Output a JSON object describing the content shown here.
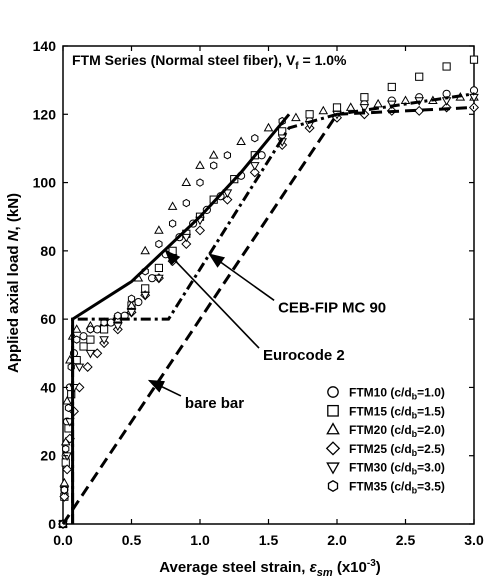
{
  "chart_data": {
    "type": "scatter",
    "title_main": "FTM Series (Normal steel fiber), V",
    "title_sub": "f",
    "title_end": " = 1.0%",
    "xlabel_main": "Average steel strain, ",
    "xlabel_sym": "ε",
    "xlabel_sub": "sm",
    "xlabel_unit_pre": " (x10",
    "xlabel_unit_sup": "-3",
    "xlabel_unit_post": ")",
    "ylabel_pre": "Applied axial load ",
    "ylabel_sym": "N",
    "ylabel_post": ", (kN)",
    "xlim": [
      0,
      3.0
    ],
    "ylim": [
      0,
      140
    ],
    "xticks": [
      "0.0",
      "0.5",
      "1.0",
      "1.5",
      "2.0",
      "2.5",
      "3.0"
    ],
    "xtick_values": [
      0,
      0.5,
      1.0,
      1.5,
      2.0,
      2.5,
      3.0
    ],
    "yticks": [
      "0",
      "20",
      "40",
      "60",
      "80",
      "100",
      "120",
      "140"
    ],
    "ytick_values": [
      0,
      20,
      40,
      60,
      80,
      100,
      120,
      140
    ],
    "grid": false,
    "legend_position": "bottom-right",
    "annotations": [
      {
        "text": "CEB-FIP MC 90",
        "x": 1.57,
        "y": 62,
        "arrow_to": [
          1.07,
          79
        ]
      },
      {
        "text": "Eurocode 2",
        "x": 1.46,
        "y": 48,
        "arrow_to": [
          0.75,
          80
        ]
      },
      {
        "text": "bare bar",
        "x": 0.89,
        "y": 34,
        "arrow_to": [
          0.63,
          42
        ]
      }
    ],
    "models": [
      {
        "name": "CEB-FIP MC 90",
        "style": "solid",
        "x": [
          0.07,
          0.07,
          0.5,
          1.0,
          1.3,
          1.65
        ],
        "y": [
          0,
          60,
          71,
          90,
          103,
          120
        ]
      },
      {
        "name": "Eurocode 2",
        "style": "dash-dot",
        "x": [
          0.07,
          0.07,
          0.77,
          1.65,
          2.0,
          3.0
        ],
        "y": [
          0,
          60,
          60,
          116,
          120,
          126
        ]
      },
      {
        "name": "bare bar",
        "style": "dashed",
        "x": [
          0.0,
          2.0,
          3.0
        ],
        "y": [
          0,
          120,
          122
        ]
      }
    ],
    "series": [
      {
        "name": "FTM10",
        "legend_pre": "FTM10 (c/d",
        "legend_sub": "b",
        "legend_post": "=1.0)",
        "marker": "circle",
        "x": [
          0.0,
          0.01,
          0.02,
          0.03,
          0.05,
          0.08,
          0.15,
          0.25,
          0.35,
          0.45,
          0.55,
          0.65,
          0.75,
          0.85,
          0.95,
          1.05,
          1.15,
          1.3,
          1.45,
          1.6,
          1.8,
          2.0,
          2.2,
          2.4,
          2.6,
          2.8,
          3.0
        ],
        "y": [
          0,
          10,
          20,
          30,
          40,
          50,
          55,
          57,
          59,
          61,
          65,
          72,
          79,
          84,
          88,
          92,
          96,
          102,
          108,
          114,
          118,
          121,
          123,
          124,
          125,
          126,
          127
        ]
      },
      {
        "name": "FTM15",
        "legend_pre": "FTM15 (c/d",
        "legend_sub": "b",
        "legend_post": "=1.5)",
        "marker": "square",
        "x": [
          0.0,
          0.01,
          0.02,
          0.04,
          0.06,
          0.1,
          0.15,
          0.2,
          0.3,
          0.4,
          0.5,
          0.6,
          0.7,
          0.8,
          0.9,
          1.0,
          1.1,
          1.25,
          1.4,
          1.6,
          1.8,
          2.0,
          2.2,
          2.4,
          2.6,
          2.8,
          3.0
        ],
        "y": [
          0,
          8,
          18,
          28,
          38,
          48,
          52,
          54,
          57,
          60,
          64,
          69,
          75,
          80,
          85,
          90,
          95,
          101,
          108,
          115,
          120,
          122,
          125,
          128,
          131,
          134,
          136
        ]
      },
      {
        "name": "FTM20",
        "legend_pre": "FTM20 (c/d",
        "legend_sub": "b",
        "legend_post": "=2.0)",
        "marker": "triangle-up",
        "x": [
          0.0,
          0.01,
          0.02,
          0.03,
          0.05,
          0.07,
          0.1,
          0.2,
          0.3,
          0.4,
          0.5,
          0.55,
          0.6,
          0.7,
          0.8,
          0.9,
          1.0,
          1.1,
          1.3,
          1.5,
          1.7,
          1.9,
          2.1,
          2.3,
          2.5,
          2.7,
          2.9,
          3.0
        ],
        "y": [
          0,
          12,
          24,
          36,
          48,
          55,
          57,
          58,
          59,
          60,
          64,
          72,
          80,
          86,
          93,
          100,
          105,
          108,
          112,
          116,
          119,
          121,
          122,
          123,
          124,
          124,
          125,
          125
        ]
      },
      {
        "name": "FTM25",
        "legend_pre": "FTM25 (c/d",
        "legend_sub": "b",
        "legend_post": "=2.5)",
        "marker": "diamond",
        "x": [
          0.0,
          0.01,
          0.03,
          0.05,
          0.08,
          0.12,
          0.18,
          0.25,
          0.3,
          0.4,
          0.5,
          0.6,
          0.7,
          0.8,
          0.9,
          1.0,
          1.2,
          1.4,
          1.6,
          1.8,
          2.0,
          2.2,
          2.4,
          2.6,
          2.8,
          3.0
        ],
        "y": [
          0,
          8,
          16,
          25,
          33,
          40,
          46,
          50,
          53,
          57,
          62,
          67,
          72,
          77,
          82,
          86,
          95,
          103,
          111,
          116,
          119,
          120,
          121,
          121,
          122,
          122
        ]
      },
      {
        "name": "FTM30",
        "legend_pre": "FTM30 (c/d",
        "legend_sub": "b",
        "legend_post": "=3.0)",
        "marker": "triangle-down",
        "x": [
          0.0,
          0.01,
          0.03,
          0.05,
          0.08,
          0.12,
          0.2,
          0.3,
          0.4,
          0.5,
          0.6,
          0.7,
          0.8,
          0.9,
          1.0,
          1.2,
          1.4,
          1.6,
          1.8,
          2.0,
          2.2,
          2.4,
          2.6,
          2.8,
          3.0
        ],
        "y": [
          0,
          10,
          20,
          30,
          40,
          46,
          50,
          54,
          58,
          62,
          67,
          72,
          78,
          84,
          89,
          97,
          105,
          112,
          117,
          120,
          122,
          123,
          124,
          124,
          125
        ]
      },
      {
        "name": "FTM35",
        "legend_pre": "FTM35 (c/d",
        "legend_sub": "b",
        "legend_post": "=3.5)",
        "marker": "hexagon",
        "x": [
          0.0,
          0.01,
          0.02,
          0.04,
          0.06,
          0.1,
          0.2,
          0.3,
          0.4,
          0.5,
          0.6,
          0.7,
          0.8,
          0.9,
          1.0,
          1.1,
          1.2,
          1.4,
          1.6
        ],
        "y": [
          0,
          10,
          22,
          34,
          46,
          54,
          57,
          59,
          61,
          66,
          74,
          82,
          88,
          94,
          100,
          105,
          108,
          113,
          118
        ]
      }
    ]
  }
}
